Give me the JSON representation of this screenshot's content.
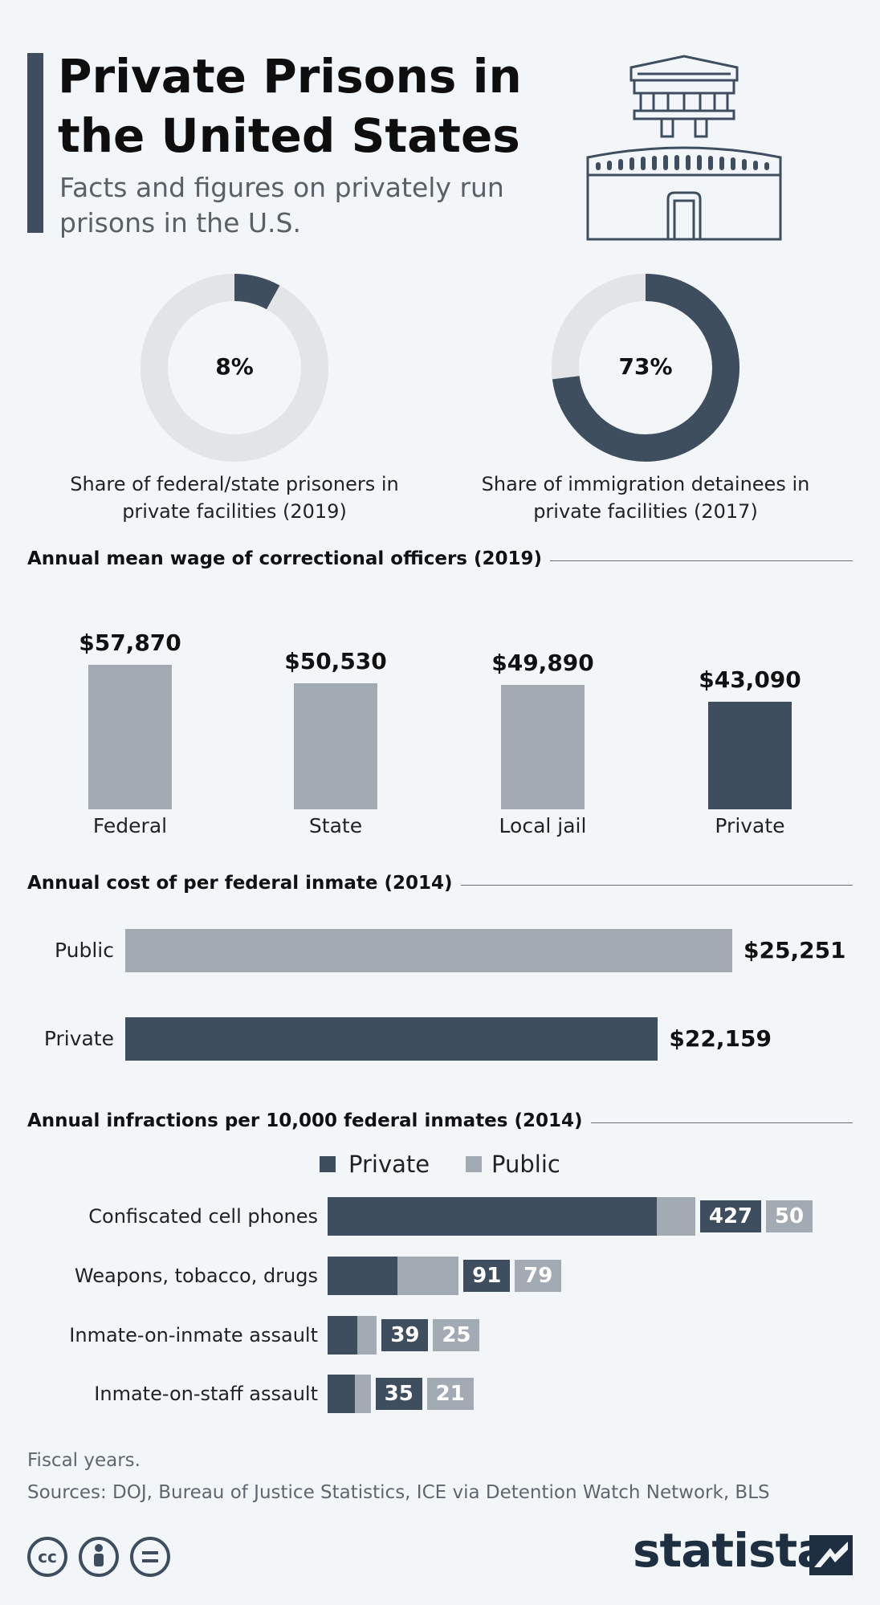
{
  "header": {
    "title": "Private Prisons in the United States",
    "subtitle": "Facts and figures on privately run prisons in the U.S."
  },
  "illustration": {
    "icon": "prison-watchtower-icon"
  },
  "colors": {
    "dark": "#3f4e5e",
    "light": "#a2abb3",
    "track": "#e2e4e6",
    "accent": "#3f4e5e",
    "background": "#f3f6f9"
  },
  "chart_data": [
    {
      "type": "pie",
      "variant": "donut",
      "value_label": "8%",
      "share": 0.08,
      "caption": "Share of federal/state prisoners in private facilities (2019)"
    },
    {
      "type": "pie",
      "variant": "donut",
      "value_label": "73%",
      "share": 0.73,
      "caption": "Share of immigration detainees in private facilities (2017)"
    },
    {
      "type": "bar",
      "title": "Annual mean wage of correctional officers (2019)",
      "categories": [
        "Federal",
        "State",
        "Local jail",
        "Private"
      ],
      "values": [
        57870,
        50530,
        49890,
        43090
      ],
      "labels": [
        "$57,870",
        "$50,530",
        "$49,890",
        "$43,090"
      ],
      "highlight": "Private"
    },
    {
      "type": "bar",
      "orientation": "horizontal",
      "title": "Annual cost of per federal inmate (2014)",
      "categories": [
        "Public",
        "Private"
      ],
      "values": [
        25251,
        22159
      ],
      "labels": [
        "$25,251",
        "$22,159"
      ]
    },
    {
      "type": "bar",
      "orientation": "horizontal",
      "stacked": true,
      "title": "Annual infractions per 10,000 federal inmates (2014)",
      "categories": [
        "Confiscated cell phones",
        "Weapons, tobacco, drugs",
        "Inmate-on-inmate assault",
        "Inmate-on-staff assault"
      ],
      "series": [
        {
          "name": "Private",
          "values": [
            427,
            91,
            39,
            35
          ]
        },
        {
          "name": "Public",
          "values": [
            50,
            79,
            25,
            21
          ]
        }
      ],
      "legend": "top"
    }
  ],
  "footer": {
    "note": "Fiscal years.",
    "sources": "Sources: DOJ, Bureau of Justice Statistics, ICE via Detention Watch Network, BLS",
    "brand": "statista",
    "license_icons": [
      "creative-commons-icon",
      "attribution-icon",
      "no-derivatives-icon"
    ]
  }
}
